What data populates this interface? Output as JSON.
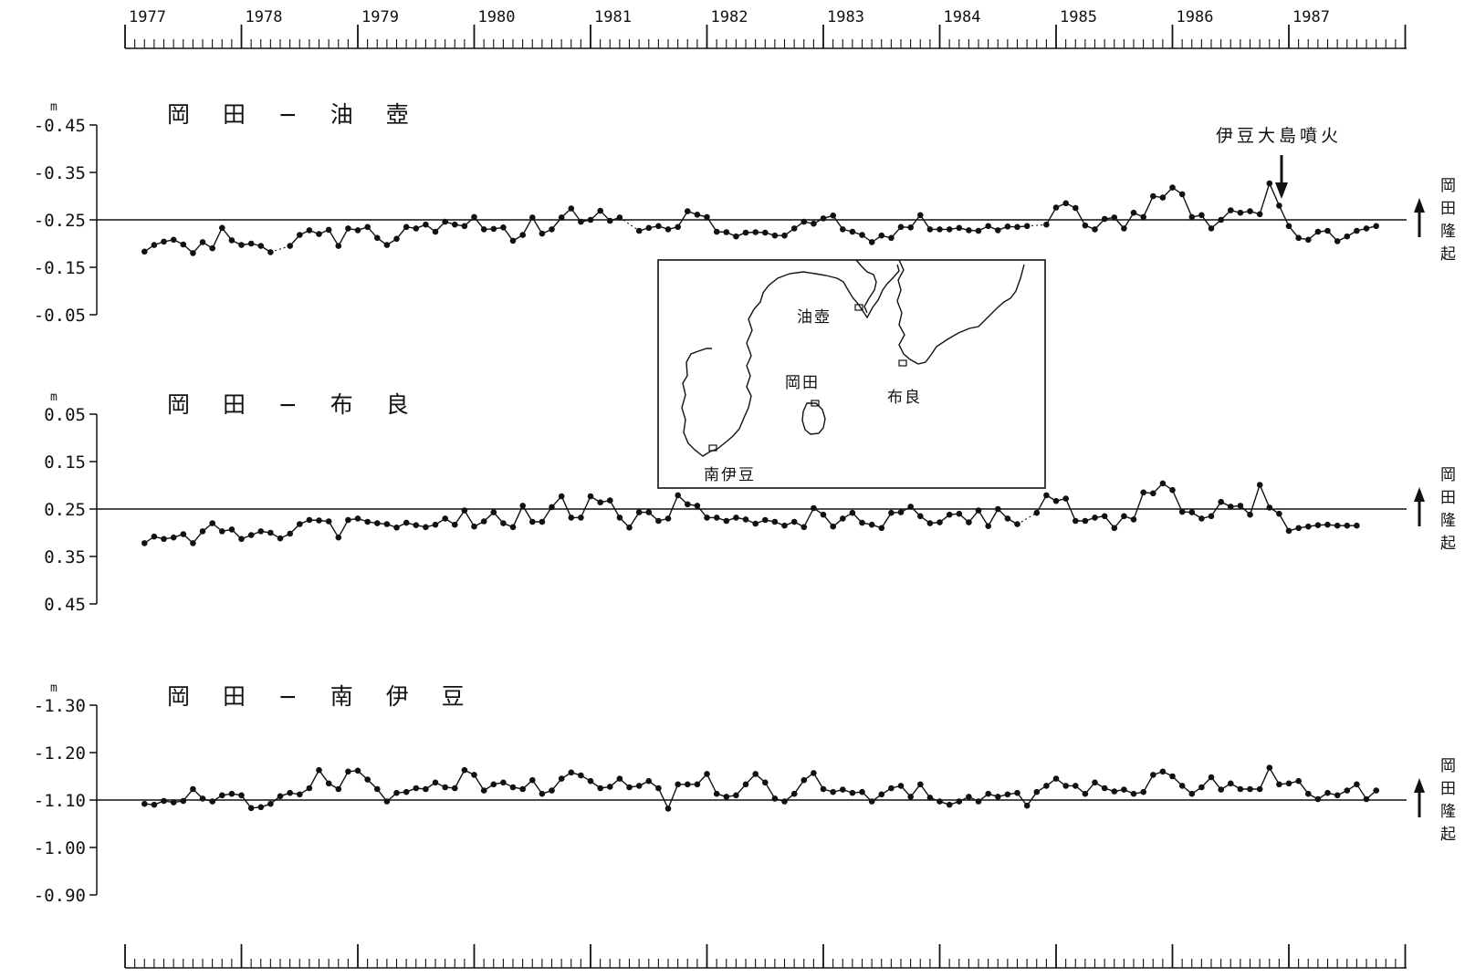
{
  "chart_data": {
    "type": "line",
    "years": [
      "1977",
      "1978",
      "1979",
      "1980",
      "1981",
      "1982",
      "1983",
      "1984",
      "1985",
      "1986",
      "1987"
    ],
    "event": {
      "label": "伊豆大島噴火",
      "x": 1986.88
    },
    "inset_map": {
      "labels": [
        "油壺",
        "岡田",
        "布良",
        "南伊豆"
      ]
    },
    "panels": [
      {
        "title": "岡 田 − 油 壺",
        "unit": "m",
        "ticks": [
          "-0.45",
          "-0.35",
          "-0.25",
          "-0.15",
          "-0.05"
        ],
        "ylim": [
          -0.45,
          -0.05
        ],
        "reference": -0.25,
        "side_label": [
          "岡",
          "田",
          "隆",
          "起"
        ],
        "values": [
          -0.183,
          -0.197,
          -0.204,
          -0.208,
          -0.198,
          -0.18,
          -0.203,
          -0.19,
          -0.233,
          -0.207,
          -0.197,
          -0.2,
          -0.195,
          -0.182,
          null,
          -0.195,
          -0.218,
          -0.228,
          -0.22,
          -0.229,
          -0.195,
          -0.232,
          -0.228,
          -0.235,
          -0.212,
          -0.197,
          -0.21,
          -0.235,
          -0.232,
          -0.24,
          -0.225,
          -0.246,
          -0.24,
          -0.237,
          -0.256,
          -0.23,
          -0.231,
          -0.234,
          -0.206,
          -0.218,
          -0.255,
          -0.221,
          -0.23,
          -0.255,
          -0.274,
          -0.246,
          -0.25,
          -0.269,
          -0.248,
          -0.255,
          null,
          -0.227,
          -0.233,
          -0.237,
          -0.23,
          -0.235,
          -0.268,
          -0.261,
          -0.256,
          -0.225,
          -0.224,
          -0.215,
          -0.223,
          -0.224,
          -0.223,
          -0.217,
          -0.217,
          -0.232,
          -0.246,
          -0.242,
          -0.253,
          -0.259,
          -0.23,
          -0.225,
          -0.218,
          -0.203,
          -0.217,
          -0.212,
          -0.235,
          -0.234,
          -0.26,
          -0.23,
          -0.23,
          -0.23,
          -0.233,
          -0.228,
          -0.227,
          -0.237,
          -0.228,
          -0.236,
          -0.235,
          -0.237,
          null,
          -0.24,
          -0.276,
          -0.285,
          -0.275,
          -0.238,
          -0.23,
          -0.252,
          -0.255,
          -0.232,
          -0.265,
          -0.256,
          -0.3,
          -0.297,
          -0.318,
          -0.304,
          -0.256,
          -0.26,
          -0.232,
          -0.25,
          -0.27,
          -0.265,
          -0.268,
          -0.262,
          -0.327,
          -0.28,
          -0.237,
          -0.212,
          -0.208,
          -0.225,
          -0.227,
          -0.205,
          -0.215,
          -0.227,
          -0.232,
          -0.237
        ]
      },
      {
        "title": "岡 田 − 布 良",
        "unit": "m",
        "ticks": [
          "0.05",
          "0.15",
          "0.25",
          "0.35",
          "0.45"
        ],
        "ylim": [
          0.05,
          0.45
        ],
        "reference": 0.25,
        "side_label": [
          "岡",
          "田",
          "隆",
          "起"
        ],
        "values": [
          0.322,
          0.308,
          0.313,
          0.31,
          0.303,
          0.322,
          0.297,
          0.28,
          0.297,
          0.293,
          0.313,
          0.305,
          0.297,
          0.3,
          0.312,
          0.302,
          0.282,
          0.273,
          0.274,
          0.276,
          0.31,
          0.273,
          0.27,
          0.277,
          0.28,
          0.282,
          0.289,
          0.279,
          0.284,
          0.288,
          0.283,
          0.27,
          0.283,
          0.253,
          0.287,
          0.276,
          0.257,
          0.28,
          0.288,
          0.243,
          0.277,
          0.277,
          0.246,
          0.223,
          0.268,
          0.268,
          0.223,
          0.236,
          0.232,
          0.268,
          0.289,
          0.257,
          0.257,
          0.275,
          0.27,
          0.221,
          0.24,
          0.243,
          0.268,
          0.268,
          0.275,
          0.268,
          0.272,
          0.281,
          0.273,
          0.277,
          0.285,
          0.277,
          0.288,
          0.248,
          0.262,
          0.287,
          0.27,
          0.258,
          0.279,
          0.283,
          0.29,
          0.258,
          0.257,
          0.245,
          0.265,
          0.28,
          0.278,
          0.262,
          0.26,
          0.278,
          0.253,
          0.286,
          0.25,
          0.27,
          0.282,
          null,
          0.258,
          0.221,
          0.233,
          0.228,
          0.275,
          0.275,
          0.268,
          0.265,
          0.29,
          0.265,
          0.272,
          0.215,
          0.217,
          0.196,
          0.21,
          0.256,
          0.257,
          0.27,
          0.265,
          0.235,
          0.245,
          0.243,
          0.262,
          0.199,
          0.247,
          0.26,
          0.296,
          0.29,
          0.287,
          0.284,
          0.283,
          0.285,
          0.285,
          0.285
        ]
      },
      {
        "title": "岡 田 − 南 伊 豆",
        "unit": "m",
        "ticks": [
          "-1.30",
          "-1.20",
          "-1.10",
          "-1.00",
          "-0.90"
        ],
        "ylim": [
          -1.3,
          -0.9
        ],
        "reference": -1.1,
        "side_label": [
          "岡",
          "田",
          "隆",
          "起"
        ],
        "values": [
          -1.092,
          -1.09,
          -1.098,
          -1.095,
          -1.098,
          -1.123,
          -1.103,
          -1.097,
          -1.11,
          -1.113,
          -1.11,
          -1.083,
          -1.085,
          -1.092,
          -1.108,
          -1.115,
          -1.112,
          -1.125,
          -1.163,
          -1.135,
          -1.123,
          -1.16,
          -1.162,
          -1.143,
          -1.123,
          -1.097,
          -1.115,
          -1.117,
          -1.125,
          -1.123,
          -1.137,
          -1.127,
          -1.125,
          -1.163,
          -1.153,
          -1.12,
          -1.133,
          -1.137,
          -1.127,
          -1.123,
          -1.142,
          -1.113,
          -1.12,
          -1.145,
          -1.158,
          -1.152,
          -1.14,
          -1.125,
          -1.128,
          -1.145,
          -1.127,
          -1.13,
          -1.14,
          -1.125,
          -1.082,
          -1.133,
          -1.133,
          -1.133,
          -1.155,
          -1.113,
          -1.107,
          -1.11,
          -1.133,
          -1.155,
          -1.137,
          -1.103,
          -1.097,
          -1.113,
          -1.142,
          -1.157,
          -1.123,
          -1.117,
          -1.122,
          -1.115,
          -1.117,
          -1.097,
          -1.112,
          -1.125,
          -1.13,
          -1.107,
          -1.133,
          -1.105,
          -1.097,
          -1.09,
          -1.097,
          -1.107,
          -1.097,
          -1.113,
          -1.107,
          -1.112,
          -1.115,
          -1.088,
          -1.117,
          -1.13,
          -1.145,
          -1.13,
          -1.13,
          -1.113,
          -1.137,
          -1.125,
          -1.118,
          -1.122,
          -1.113,
          -1.117,
          -1.153,
          -1.16,
          -1.15,
          -1.13,
          -1.113,
          -1.127,
          -1.148,
          -1.122,
          -1.135,
          -1.123,
          -1.123,
          -1.123,
          -1.168,
          -1.133,
          -1.135,
          -1.14,
          -1.113,
          -1.102,
          -1.115,
          -1.11,
          -1.12,
          -1.133,
          -1.102,
          -1.12
        ]
      }
    ]
  }
}
